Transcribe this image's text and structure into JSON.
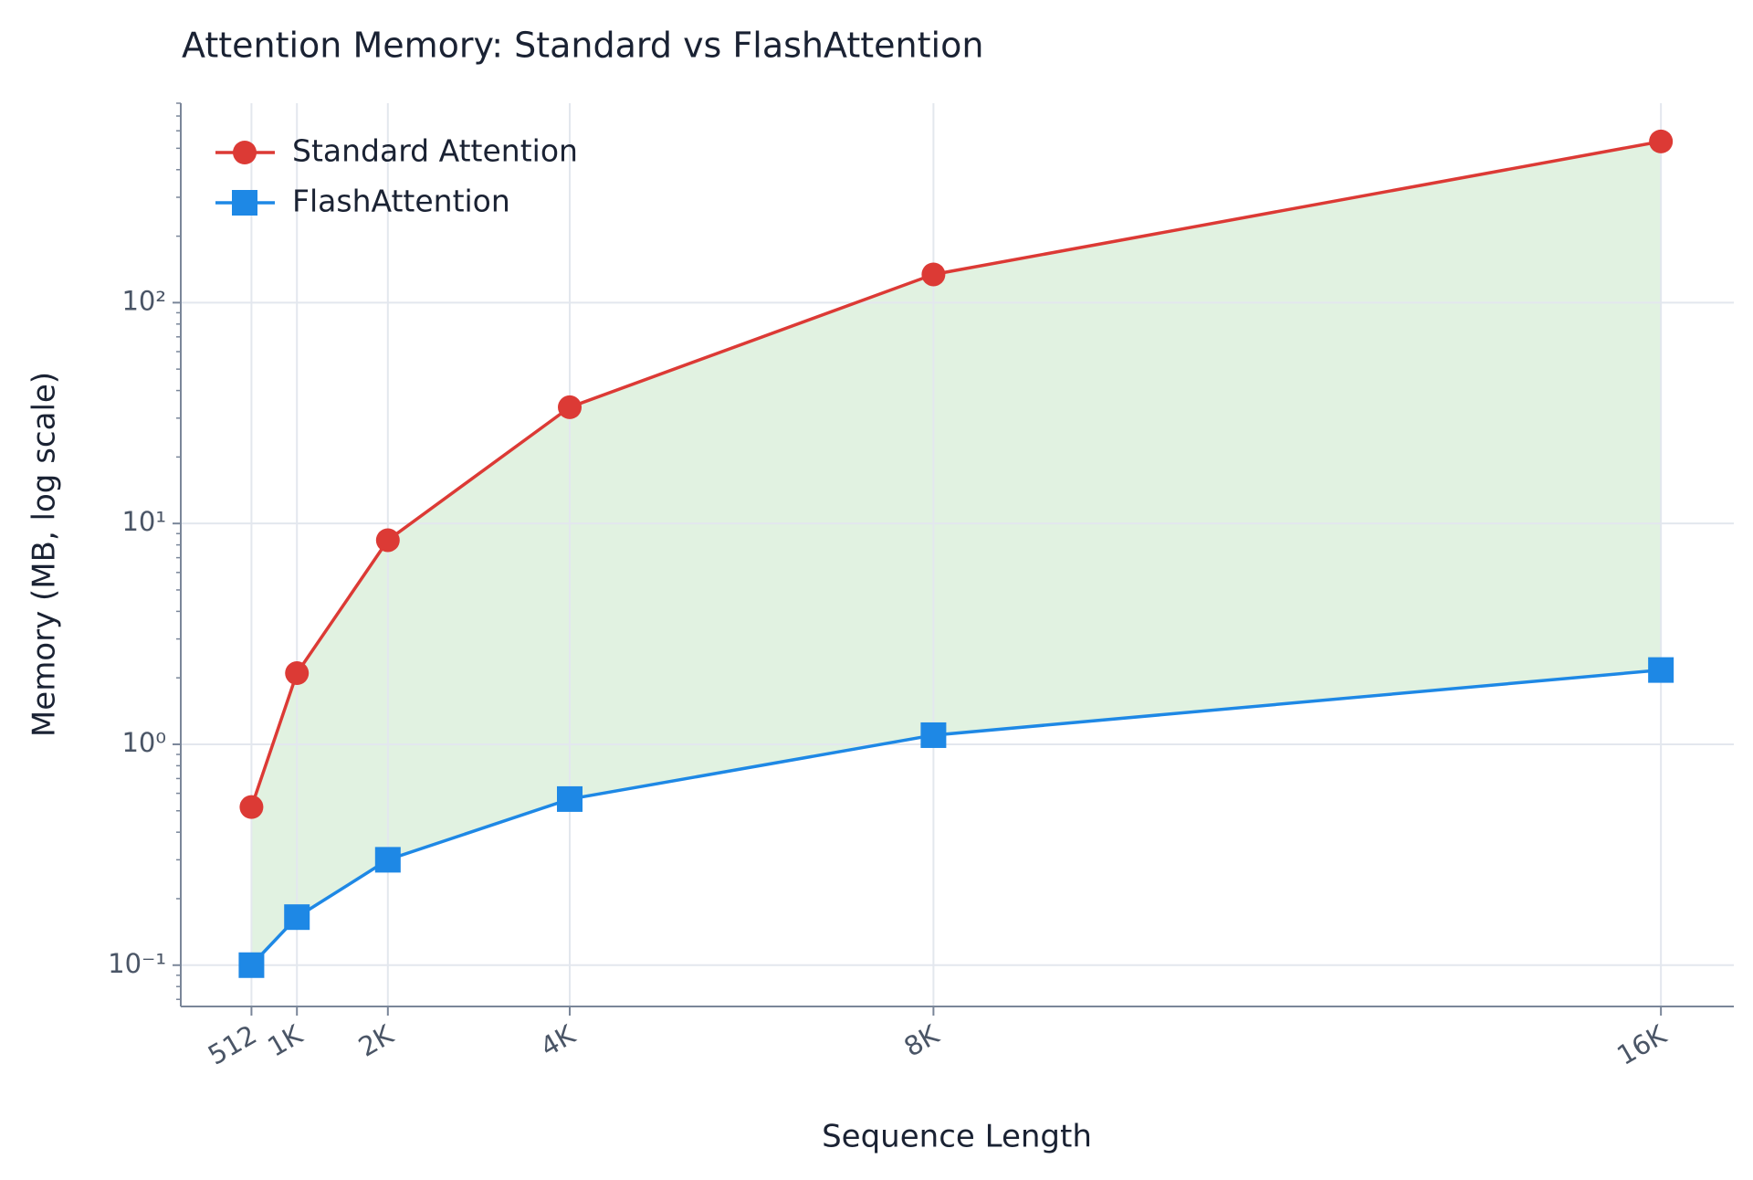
{
  "chart_data": {
    "type": "line",
    "title": "Attention Memory: Standard vs FlashAttention",
    "x_label": "Sequence Length",
    "y_label": "Memory (MB, log scale)",
    "x": [
      512,
      1024,
      2048,
      4096,
      8192,
      16384
    ],
    "series": [
      {
        "name": "Standard Attention",
        "color": "#dc3a35",
        "marker": "circle",
        "values": [
          0.52,
          2.1,
          8.4,
          33.6,
          134.2,
          536.9
        ]
      },
      {
        "name": "FlashAttention",
        "color": "#1e88e5",
        "marker": "square",
        "values": [
          0.1,
          0.165,
          0.3,
          0.565,
          1.1,
          2.17
        ]
      }
    ],
    "fill_between_color": "#2ca02c",
    "xlim": [
      -284,
      17205
    ],
    "xticks": [
      512,
      {
        "value": 1024,
        "label": "1K"
      },
      {
        "value": 2048,
        "label": "2K"
      },
      {
        "value": 4096,
        "label": "4K"
      },
      {
        "value": 8192,
        "label": "8K"
      },
      {
        "value": 16384,
        "label": "16K"
      }
    ],
    "ylim": [
      0.065,
      800
    ],
    "yticks": [
      {
        "value": 0.1,
        "label": "10⁻¹"
      },
      {
        "value": 1,
        "label": "10⁰"
      },
      {
        "value": 10,
        "label": "10¹"
      },
      {
        "value": 100,
        "label": "10²"
      }
    ],
    "y_scale": "log",
    "grid": true,
    "legend": "upper-left"
  }
}
